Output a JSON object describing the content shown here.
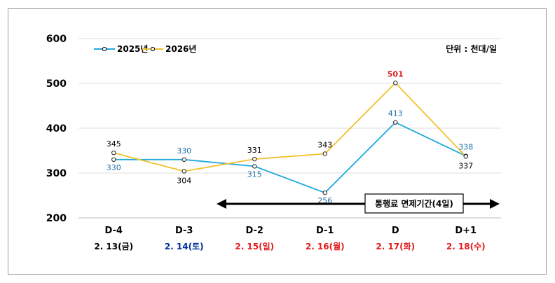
{
  "chart_data": {
    "type": "line",
    "categories": [
      "D-4",
      "D-3",
      "D-2",
      "D-1",
      "D",
      "D+1"
    ],
    "dates": [
      {
        "text": "2. 13(금)",
        "color": "#000000"
      },
      {
        "text": "2. 14(토)",
        "color": "#002b9c"
      },
      {
        "text": "2. 15(일)",
        "color": "#e31b1b"
      },
      {
        "text": "2. 16(월)",
        "color": "#e31b1b"
      },
      {
        "text": "2. 17(화)",
        "color": "#e31b1b"
      },
      {
        "text": "2. 18(수)",
        "color": "#e31b1b"
      }
    ],
    "series": [
      {
        "name": "2025년",
        "color": "#1fa9dd",
        "label_color": "#1f6fa8",
        "values": [
          330,
          330,
          315,
          256,
          413,
          338
        ]
      },
      {
        "name": "2026년",
        "color": "#f2c22c",
        "label_color": "#000000",
        "values": [
          345,
          304,
          331,
          343,
          501,
          337
        ]
      }
    ],
    "yticks": [
      "200",
      "300",
      "400",
      "500",
      "600"
    ],
    "ylim": [
      200,
      600
    ],
    "unit": "단위 : 천대/일",
    "highlight": {
      "text": "501",
      "color": "#d91e1e"
    },
    "annotation": "통행료 면제기간(4일)",
    "grid": true,
    "legend": "top-left"
  }
}
